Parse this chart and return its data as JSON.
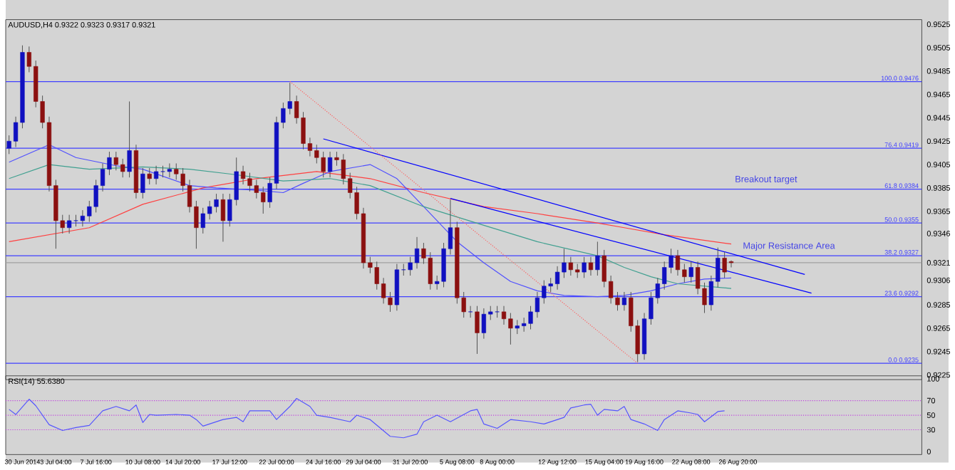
{
  "chart_data": [
    {
      "type": "candlestick",
      "title": "AUDUSD,H4  0.9322 0.9323 0.9317 0.9321",
      "categories": [
        null,
        null,
        null,
        null,
        null,
        null,
        null,
        null,
        null,
        null,
        null,
        null,
        null,
        null,
        null,
        null,
        null,
        null,
        null,
        null,
        null,
        null,
        null,
        null,
        null,
        null,
        null,
        null,
        null,
        null,
        null,
        null,
        null,
        null,
        null,
        null,
        null,
        null,
        null,
        null,
        null,
        null,
        null,
        null,
        null,
        null,
        null,
        null,
        null,
        null,
        null,
        null,
        null,
        null,
        null,
        null,
        null,
        null,
        null,
        null,
        null,
        null,
        null,
        null,
        null,
        null,
        null,
        null,
        null,
        null,
        null,
        null,
        null,
        null,
        null,
        null,
        null,
        null,
        null,
        null,
        null,
        null,
        null,
        null,
        null,
        null,
        null,
        null,
        null,
        null,
        null,
        null,
        null,
        null,
        null,
        null,
        null,
        null,
        null,
        null,
        null,
        null,
        null,
        null,
        null,
        null,
        null,
        null,
        null,
        null,
        null,
        null,
        null,
        null,
        null,
        null,
        null,
        null,
        null,
        null,
        null,
        null,
        null,
        null,
        null,
        null,
        null,
        null,
        null,
        null,
        null,
        null,
        null,
        null,
        null,
        null,
        null
      ],
      "ohlc": [
        [
          0.9419,
          0.943,
          0.9414,
          0.9425
        ],
        [
          0.9425,
          0.9446,
          0.942,
          0.9441
        ],
        [
          0.9441,
          0.9507,
          0.9436,
          0.9501
        ],
        [
          0.9501,
          0.9506,
          0.9484,
          0.9489
        ],
        [
          0.9489,
          0.9494,
          0.9454,
          0.9459
        ],
        [
          0.9459,
          0.9464,
          0.9436,
          0.9441
        ],
        [
          0.9441,
          0.9446,
          0.9382,
          0.9387
        ],
        [
          0.9387,
          0.9392,
          0.9333,
          0.9357
        ],
        [
          0.9357,
          0.9362,
          0.9346,
          0.9351
        ],
        [
          0.9351,
          0.9362,
          0.9346,
          0.9357
        ],
        [
          0.9357,
          0.9362,
          0.9352,
          0.9357
        ],
        [
          0.9357,
          0.9366,
          0.9352,
          0.9361
        ],
        [
          0.9361,
          0.9374,
          0.9356,
          0.9369
        ],
        [
          0.9369,
          0.9392,
          0.9364,
          0.9387
        ],
        [
          0.9387,
          0.9406,
          0.9382,
          0.9401
        ],
        [
          0.9401,
          0.9416,
          0.9396,
          0.9411
        ],
        [
          0.9411,
          0.9416,
          0.94,
          0.9405
        ],
        [
          0.9405,
          0.941,
          0.9394,
          0.9399
        ],
        [
          0.9399,
          0.9459,
          0.9394,
          0.9417
        ],
        [
          0.9417,
          0.9422,
          0.9376,
          0.9381
        ],
        [
          0.9381,
          0.9402,
          0.9376,
          0.9397
        ],
        [
          0.9397,
          0.9402,
          0.9388,
          0.9393
        ],
        [
          0.9393,
          0.9404,
          0.9388,
          0.9399
        ],
        [
          0.9399,
          0.9404,
          0.9394,
          0.9399
        ],
        [
          0.9399,
          0.9406,
          0.9394,
          0.9401
        ],
        [
          0.9401,
          0.9406,
          0.9392,
          0.9397
        ],
        [
          0.9397,
          0.9402,
          0.9382,
          0.9387
        ],
        [
          0.9387,
          0.9392,
          0.9364,
          0.9369
        ],
        [
          0.9369,
          0.9374,
          0.9333,
          0.9351
        ],
        [
          0.9351,
          0.9368,
          0.9346,
          0.9363
        ],
        [
          0.9363,
          0.9374,
          0.9358,
          0.9369
        ],
        [
          0.9369,
          0.938,
          0.9364,
          0.9375
        ],
        [
          0.9375,
          0.938,
          0.9339,
          0.9357
        ],
        [
          0.9357,
          0.938,
          0.9352,
          0.9375
        ],
        [
          0.9375,
          0.9411,
          0.937,
          0.9399
        ],
        [
          0.9399,
          0.9404,
          0.9388,
          0.9393
        ],
        [
          0.9393,
          0.9398,
          0.9382,
          0.9387
        ],
        [
          0.9387,
          0.9392,
          0.9376,
          0.9381
        ],
        [
          0.9381,
          0.9386,
          0.9363,
          0.9373
        ],
        [
          0.9373,
          0.9394,
          0.9368,
          0.9389
        ],
        [
          0.9389,
          0.9446,
          0.9384,
          0.9441
        ],
        [
          0.9441,
          0.9458,
          0.9436,
          0.9453
        ],
        [
          0.9453,
          0.9475,
          0.9448,
          0.9459
        ],
        [
          0.9459,
          0.9464,
          0.944,
          0.9445
        ],
        [
          0.9445,
          0.945,
          0.9418,
          0.9423
        ],
        [
          0.9423,
          0.9428,
          0.9412,
          0.9417
        ],
        [
          0.9417,
          0.9422,
          0.9406,
          0.9411
        ],
        [
          0.9411,
          0.9416,
          0.9394,
          0.9399
        ],
        [
          0.9399,
          0.9416,
          0.9394,
          0.9411
        ],
        [
          0.9411,
          0.9416,
          0.9404,
          0.9409
        ],
        [
          0.9409,
          0.9414,
          0.9388,
          0.9393
        ],
        [
          0.9393,
          0.9398,
          0.9376,
          0.9381
        ],
        [
          0.9381,
          0.9386,
          0.9358,
          0.9363
        ],
        [
          0.9363,
          0.9368,
          0.9316,
          0.9321
        ],
        [
          0.9321,
          0.9326,
          0.9312,
          0.9317
        ],
        [
          0.9317,
          0.9322,
          0.9298,
          0.9303
        ],
        [
          0.9303,
          0.9308,
          0.9286,
          0.9291
        ],
        [
          0.9291,
          0.9296,
          0.9279,
          0.9285
        ],
        [
          0.9285,
          0.932,
          0.928,
          0.9315
        ],
        [
          0.9315,
          0.932,
          0.931,
          0.9315
        ],
        [
          0.9315,
          0.9326,
          0.931,
          0.9321
        ],
        [
          0.9321,
          0.9343,
          0.9316,
          0.9333
        ],
        [
          0.9333,
          0.9338,
          0.932,
          0.9325
        ],
        [
          0.9325,
          0.933,
          0.9298,
          0.9303
        ],
        [
          0.9303,
          0.931,
          0.9298,
          0.9305
        ],
        [
          0.9305,
          0.9338,
          0.93,
          0.9333
        ],
        [
          0.9333,
          0.9375,
          0.9328,
          0.9351
        ],
        [
          0.9351,
          0.9356,
          0.9286,
          0.9291
        ],
        [
          0.9291,
          0.9296,
          0.9274,
          0.9279
        ],
        [
          0.9279,
          0.9284,
          0.9274,
          0.9279
        ],
        [
          0.9279,
          0.9284,
          0.9243,
          0.9261
        ],
        [
          0.9261,
          0.9282,
          0.9256,
          0.9277
        ],
        [
          0.9277,
          0.9284,
          0.9272,
          0.9279
        ],
        [
          0.9279,
          0.9284,
          0.9274,
          0.9279
        ],
        [
          0.9279,
          0.9284,
          0.9268,
          0.9273
        ],
        [
          0.9273,
          0.9278,
          0.9251,
          0.9265
        ],
        [
          0.9265,
          0.9272,
          0.926,
          0.9267
        ],
        [
          0.9267,
          0.9274,
          0.9262,
          0.9269
        ],
        [
          0.9269,
          0.9284,
          0.9264,
          0.9279
        ],
        [
          0.9279,
          0.9296,
          0.9274,
          0.9291
        ],
        [
          0.9291,
          0.9306,
          0.9286,
          0.9301
        ],
        [
          0.9301,
          0.9308,
          0.9296,
          0.9303
        ],
        [
          0.9303,
          0.9318,
          0.9298,
          0.9313
        ],
        [
          0.9313,
          0.9333,
          0.9308,
          0.9321
        ],
        [
          0.9321,
          0.9326,
          0.931,
          0.9315
        ],
        [
          0.9315,
          0.932,
          0.9308,
          0.9313
        ],
        [
          0.9313,
          0.9326,
          0.9308,
          0.9321
        ],
        [
          0.9321,
          0.9326,
          0.931,
          0.9315
        ],
        [
          0.9315,
          0.9339,
          0.931,
          0.9327
        ],
        [
          0.9327,
          0.9332,
          0.93,
          0.9305
        ],
        [
          0.9305,
          0.931,
          0.9286,
          0.9291
        ],
        [
          0.9291,
          0.9296,
          0.928,
          0.9285
        ],
        [
          0.9285,
          0.9296,
          0.928,
          0.9291
        ],
        [
          0.9291,
          0.9296,
          0.9262,
          0.9267
        ],
        [
          0.9267,
          0.9272,
          0.9236,
          0.9243
        ],
        [
          0.9243,
          0.9278,
          0.9238,
          0.9273
        ],
        [
          0.9273,
          0.9296,
          0.9268,
          0.9291
        ],
        [
          0.9291,
          0.9308,
          0.9286,
          0.9303
        ],
        [
          0.9303,
          0.9322,
          0.9298,
          0.9317
        ],
        [
          0.9317,
          0.9333,
          0.9312,
          0.9327
        ],
        [
          0.9327,
          0.9332,
          0.931,
          0.9315
        ],
        [
          0.9315,
          0.932,
          0.9304,
          0.9309
        ],
        [
          0.9309,
          0.9322,
          0.9304,
          0.9317
        ],
        [
          0.9317,
          0.9322,
          0.9294,
          0.9299
        ],
        [
          0.9299,
          0.9304,
          0.9278,
          0.9285
        ],
        [
          0.9285,
          0.931,
          0.928,
          0.9305
        ],
        [
          0.9305,
          0.9334,
          0.93,
          0.9325
        ],
        [
          0.9325,
          0.933,
          0.9308,
          0.9313
        ],
        [
          0.9322,
          0.9323,
          0.9317,
          0.9321
        ],
        null,
        null,
        null,
        null,
        null,
        null,
        null,
        null,
        null,
        null,
        null,
        null,
        null,
        null,
        null,
        null,
        null,
        null,
        null,
        null,
        null,
        null,
        null,
        null,
        null,
        null,
        null,
        null
      ],
      "series": [
        {
          "type": "line",
          "color": "#ff4040",
          "values": [
            0.9339,
            null,
            null,
            null,
            null,
            null,
            null,
            null,
            null,
            null,
            null,
            null,
            0.9351,
            null,
            null,
            null,
            null,
            null,
            null,
            null,
            0.9371,
            null,
            null,
            null,
            null,
            null,
            null,
            null,
            null,
            0.9385,
            null,
            null,
            null,
            null,
            null,
            null,
            null,
            0.9393,
            null,
            null,
            null,
            null,
            null,
            null,
            null,
            null,
            0.9399,
            null,
            null,
            null,
            null,
            null,
            null,
            null,
            0.9393,
            null,
            null,
            null,
            null,
            null,
            null,
            null,
            0.9381,
            null,
            null,
            null,
            null,
            null,
            null,
            null,
            null,
            0.9369,
            null,
            null,
            null,
            null,
            null,
            null,
            null,
            0.9363,
            null,
            null,
            null,
            null,
            null,
            null,
            null,
            null,
            0.9355,
            null,
            null,
            null,
            0.9351,
            null,
            null,
            null,
            null,
            null,
            0.9345,
            null,
            null,
            null,
            null,
            null,
            null,
            null,
            null,
            null,
            0.9337,
            null,
            null,
            null,
            null,
            null,
            null,
            null,
            null,
            null,
            null,
            null,
            null,
            null,
            null,
            null,
            null,
            null,
            null,
            null,
            null,
            null,
            null,
            null,
            null,
            null,
            null,
            null,
            null
          ]
        },
        {
          "type": "line",
          "color": "#5050ff",
          "values": [
            0.9407,
            null,
            null,
            null,
            null,
            null,
            0.9422,
            null,
            null,
            null,
            0.9411,
            null,
            null,
            null,
            null,
            null,
            0.9404,
            null,
            null,
            null,
            0.9401,
            null,
            null,
            null,
            null,
            null,
            null,
            0.9387,
            null,
            null,
            null,
            0.9385,
            null,
            null,
            null,
            null,
            null,
            0.9383,
            null,
            null,
            null,
            0.9381,
            null,
            null,
            0.9389,
            null,
            null,
            null,
            0.9399,
            null,
            null,
            null,
            null,
            null,
            0.9405,
            null,
            null,
            null,
            0.9393,
            null,
            null,
            null,
            0.9369,
            null,
            null,
            null,
            null,
            0.9339,
            null,
            null,
            null,
            0.9321,
            null,
            null,
            null,
            0.9305,
            null,
            null,
            null,
            0.9297,
            null,
            null,
            null,
            0.9293,
            null,
            null,
            null,
            null,
            0.9292,
            null,
            null,
            null,
            0.9293,
            null,
            null,
            null,
            0.9297,
            null,
            null,
            null,
            0.9303,
            null,
            null,
            null,
            0.9307,
            null,
            null,
            null,
            0.9308,
            null,
            null,
            null,
            null,
            null,
            null,
            null,
            null,
            null,
            null,
            null,
            null,
            null,
            null,
            null,
            null,
            null,
            null,
            null,
            null,
            null,
            null,
            null,
            null,
            null,
            null,
            null,
            null
          ]
        },
        {
          "type": "line",
          "color": "#40a090",
          "values": [
            0.9393,
            null,
            null,
            null,
            null,
            null,
            0.9405,
            null,
            null,
            null,
            null,
            null,
            0.9401,
            null,
            null,
            null,
            null,
            null,
            null,
            null,
            0.9403,
            null,
            null,
            null,
            null,
            null,
            null,
            0.9401,
            null,
            null,
            null,
            null,
            null,
            0.9397,
            null,
            null,
            null,
            null,
            null,
            null,
            null,
            0.9391,
            null,
            null,
            null,
            null,
            null,
            null,
            0.9393,
            null,
            null,
            null,
            null,
            null,
            0.9387,
            null,
            null,
            null,
            null,
            null,
            null,
            null,
            0.9369,
            null,
            null,
            null,
            null,
            null,
            null,
            null,
            null,
            0.9353,
            null,
            null,
            null,
            null,
            null,
            null,
            null,
            0.9339,
            null,
            null,
            null,
            null,
            null,
            null,
            null,
            null,
            0.9327,
            null,
            null,
            null,
            0.9317,
            null,
            null,
            null,
            0.9309,
            null,
            null,
            null,
            0.9303,
            null,
            null,
            null,
            0.9301,
            null,
            null,
            null,
            0.9299,
            null,
            null,
            null,
            null,
            null,
            null,
            null,
            null,
            null,
            null,
            null,
            null,
            null,
            null,
            null,
            null,
            null,
            null,
            null,
            null,
            null,
            null,
            null,
            null,
            null,
            null,
            null,
            null
          ]
        },
        {
          "type": "line",
          "color": "#0000ff",
          "values": [
            null,
            null,
            null,
            null,
            null,
            null,
            null,
            null,
            null,
            null,
            null,
            null,
            null,
            null,
            null,
            null,
            null,
            null,
            null,
            null,
            null,
            null,
            null,
            null,
            null,
            null,
            null,
            null,
            null,
            null,
            null,
            null,
            null,
            null,
            null,
            null,
            null,
            null,
            null,
            null,
            null,
            null,
            null,
            null,
            null,
            null,
            null,
            0.9427,
            null,
            null,
            null,
            null,
            null,
            null,
            null,
            null,
            null,
            null,
            null,
            null,
            null,
            null,
            null,
            null,
            null,
            null,
            null,
            null,
            null,
            null,
            null,
            null,
            null,
            null,
            null,
            null,
            null,
            null,
            null,
            null,
            null,
            null,
            null,
            null,
            null,
            null,
            null,
            null,
            null,
            null,
            null,
            null,
            null,
            null,
            null,
            null,
            null,
            null,
            null,
            null,
            null,
            null,
            null,
            null,
            null,
            null,
            null,
            null,
            null,
            null,
            null,
            null,
            null,
            null,
            null,
            null,
            null,
            null,
            null,
            0.9311,
            null,
            null,
            null,
            null,
            null,
            null,
            null,
            null,
            null,
            null,
            null,
            null,
            null,
            null,
            null,
            null,
            null
          ]
        },
        {
          "type": "line",
          "color": "#0000ff",
          "values": [
            null,
            null,
            null,
            null,
            null,
            null,
            null,
            null,
            null,
            null,
            null,
            null,
            null,
            null,
            null,
            null,
            null,
            null,
            null,
            null,
            null,
            null,
            null,
            null,
            null,
            null,
            null,
            null,
            null,
            null,
            null,
            null,
            null,
            null,
            null,
            null,
            null,
            null,
            null,
            null,
            null,
            null,
            null,
            null,
            null,
            null,
            null,
            null,
            null,
            null,
            null,
            null,
            null,
            null,
            null,
            null,
            null,
            null,
            null,
            null,
            null,
            null,
            null,
            null,
            null,
            null,
            0.9376,
            null,
            null,
            null,
            null,
            null,
            null,
            null,
            null,
            null,
            null,
            null,
            null,
            null,
            null,
            null,
            null,
            null,
            null,
            null,
            null,
            null,
            null,
            null,
            null,
            null,
            null,
            null,
            null,
            null,
            null,
            null,
            null,
            null,
            null,
            null,
            null,
            null,
            null,
            null,
            null,
            null,
            null,
            null,
            null,
            null,
            null,
            null,
            null,
            null,
            null,
            null,
            null,
            null,
            0.9295,
            null,
            null,
            null,
            null,
            null,
            null,
            null,
            null,
            null,
            null,
            null,
            null,
            null,
            null,
            null,
            null
          ]
        },
        {
          "type": "line",
          "color": "#ff6060",
          "line_style": "dotted",
          "values": [
            null,
            null,
            null,
            null,
            null,
            null,
            null,
            null,
            null,
            null,
            null,
            null,
            null,
            null,
            null,
            null,
            null,
            null,
            null,
            null,
            null,
            null,
            null,
            null,
            null,
            null,
            null,
            null,
            null,
            null,
            null,
            null,
            null,
            null,
            null,
            null,
            null,
            null,
            null,
            null,
            null,
            null,
            0.9476,
            null,
            null,
            null,
            null,
            null,
            null,
            null,
            null,
            null,
            null,
            null,
            null,
            null,
            null,
            null,
            null,
            null,
            null,
            null,
            null,
            null,
            null,
            null,
            null,
            null,
            null,
            null,
            null,
            null,
            null,
            null,
            null,
            null,
            null,
            null,
            null,
            null,
            null,
            null,
            null,
            null,
            null,
            null,
            null,
            null,
            null,
            null,
            null,
            null,
            null,
            null,
            0.9235,
            null,
            null,
            null,
            null,
            null,
            null,
            null,
            null,
            null,
            null,
            null,
            null,
            null,
            null,
            null,
            null,
            null,
            null,
            null,
            null,
            null,
            null,
            null,
            null,
            null,
            null,
            null,
            null,
            null,
            null,
            null,
            null,
            null,
            null,
            null,
            null,
            null,
            null,
            null,
            null,
            null,
            null
          ]
        }
      ],
      "ylim": [
        0.9221,
        0.9529
      ],
      "yticks": [
        0.9525,
        0.9505,
        0.9485,
        0.9465,
        0.9445,
        0.9425,
        0.9405,
        0.9385,
        0.9365,
        0.9346,
        0.9321,
        0.9306,
        0.9285,
        0.9265,
        0.9245,
        0.9225
      ],
      "tick_labels": "y",
      "ref_lines": [
        {
          "axis": "y",
          "value": 0.9476,
          "label": "100.0 0.9476",
          "color": "#4040ff"
        },
        {
          "axis": "y",
          "value": 0.9419,
          "label": "76.4 0.9419",
          "color": "#4040ff"
        },
        {
          "axis": "y",
          "value": 0.9384,
          "label": "61.8 0.9384",
          "color": "#4040ff"
        },
        {
          "axis": "y",
          "value": 0.9355,
          "label": "50.0 0.9355",
          "color": "#4040ff"
        },
        {
          "axis": "y",
          "value": 0.9327,
          "label": "38.2 0.9327",
          "color": "#4040ff"
        },
        {
          "axis": "y",
          "value": 0.9292,
          "label": "23.6 0.9292",
          "color": "#4040ff"
        },
        {
          "axis": "y",
          "value": 0.9235,
          "label": "0.0 0.9235",
          "color": "#4040ff"
        },
        {
          "axis": "y",
          "value": 0.9321,
          "color": "#a0a0a0"
        }
      ],
      "annotations": [
        "Breakout target",
        "Major Resistance Area"
      ]
    },
    {
      "type": "line",
      "title": "RSI(14) 55.6380",
      "categories": [
        null,
        null,
        "30 Jun 2014",
        null,
        null,
        null,
        null,
        "3 Jul 04:00",
        null,
        null,
        null,
        null,
        null,
        "7 Jul 16:00",
        null,
        null,
        null,
        null,
        null,
        null,
        "10 Jul 08:00",
        null,
        null,
        null,
        null,
        null,
        "14 Jul 20:00",
        null,
        null,
        null,
        null,
        null,
        null,
        "17 Jul 12:00",
        null,
        null,
        null,
        null,
        null,
        null,
        "22 Jul 00:00",
        null,
        null,
        null,
        null,
        null,
        null,
        "24 Jul 16:00",
        null,
        null,
        null,
        null,
        null,
        "29 Jul 04:00",
        null,
        null,
        null,
        null,
        null,
        null,
        "31 Jul 20:00",
        null,
        null,
        null,
        null,
        null,
        null,
        "5 Aug 08:00",
        null,
        null,
        null,
        null,
        null,
        "8 Aug 00:00",
        null,
        null,
        null,
        null,
        null,
        null,
        null,
        null,
        "12 Aug 12:00",
        null,
        null,
        null,
        null,
        null,
        null,
        "15 Aug 04:00",
        null,
        null,
        null,
        null,
        null,
        "19 Aug 16:00",
        null,
        null,
        null,
        null,
        null,
        null,
        "22 Aug 08:00",
        null,
        null,
        null,
        null,
        null,
        null,
        "26 Aug 20:00",
        null,
        null,
        null,
        null,
        null,
        null,
        null,
        null,
        null,
        null,
        null,
        null,
        null,
        null,
        null,
        null,
        null,
        null,
        null,
        null,
        null,
        null,
        null,
        null,
        null,
        null,
        null
      ],
      "series": [
        {
          "color": "#5555ff",
          "values": [
            58,
            51,
            null,
            72,
            63,
            null,
            37,
            null,
            29,
            null,
            33,
            null,
            36,
            null,
            56,
            null,
            62,
            null,
            56,
            64,
            40,
            51,
            50,
            null,
            null,
            51,
            null,
            50,
            44,
            35,
            null,
            null,
            44,
            null,
            47,
            41,
            56,
            null,
            null,
            56,
            44,
            null,
            62,
            73,
            null,
            62,
            50,
            null,
            47,
            null,
            null,
            41,
            50,
            null,
            44,
            null,
            null,
            21,
            null,
            19,
            null,
            24,
            41,
            null,
            50,
            null,
            41,
            null,
            null,
            56,
            58,
            38,
            null,
            32,
            null,
            44,
            null,
            null,
            41,
            null,
            38,
            null,
            null,
            47,
            60,
            null,
            64,
            65,
            50,
            58,
            null,
            56,
            62,
            44,
            null,
            38,
            null,
            29,
            44,
            null,
            56,
            null,
            53,
            51,
            41,
            null,
            55,
            56,
            null,
            null,
            null,
            null,
            null,
            null,
            null,
            null,
            null,
            null,
            null,
            null,
            null,
            null,
            null,
            null,
            null,
            null,
            null,
            null,
            null,
            null,
            null,
            null,
            null,
            null,
            null,
            null,
            null
          ]
        }
      ],
      "ylim": [
        -4,
        104
      ],
      "yticks": [
        100,
        70,
        50,
        30,
        0
      ],
      "ref_lines": [
        {
          "axis": "y",
          "value": 70,
          "color": "#c040e0",
          "line_style": "dotted"
        },
        {
          "axis": "y",
          "value": 50,
          "color": "#c040e0",
          "line_style": "dotted"
        },
        {
          "axis": "y",
          "value": 30,
          "color": "#c040e0",
          "line_style": "dotted"
        }
      ]
    }
  ]
}
